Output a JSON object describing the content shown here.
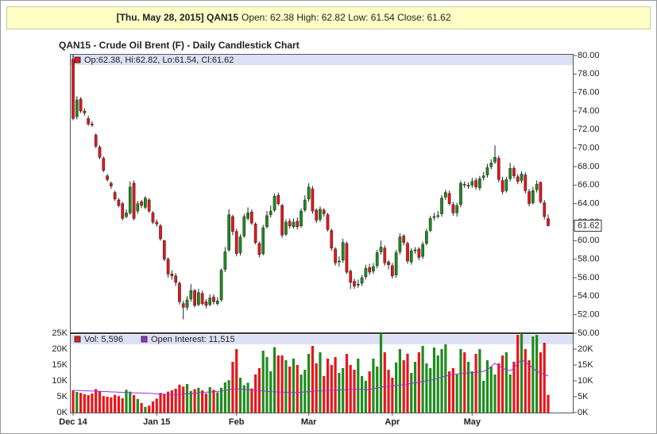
{
  "chart_data": {
    "type": "candlestick",
    "header_title": "[Thu. May 28, 2015] QAN15",
    "header_quote": "Open: 62.38 High: 62.82 Low: 61.54 Close: 61.62",
    "title": "QAN15 - Crude Oil Brent (F) - Daily Candlestick Chart",
    "price_legend": "Op:62.38, Hi:62.82, Lo:61.54, Cl:61.62",
    "up_color": "#1e8c1e",
    "down_color": "#e8151b",
    "categories": [
      "Dec 14",
      null,
      null,
      null,
      null,
      null,
      null,
      null,
      null,
      null,
      null,
      null,
      null,
      null,
      null,
      null,
      null,
      null,
      null,
      null,
      null,
      null,
      "Jan 15",
      null,
      null,
      null,
      null,
      null,
      null,
      null,
      null,
      null,
      null,
      null,
      null,
      null,
      null,
      null,
      null,
      null,
      null,
      null,
      null,
      "Feb",
      null,
      null,
      null,
      null,
      null,
      null,
      null,
      null,
      null,
      null,
      null,
      null,
      null,
      null,
      null,
      null,
      null,
      null,
      "Mar",
      null,
      null,
      null,
      null,
      null,
      null,
      null,
      null,
      null,
      null,
      null,
      null,
      null,
      null,
      null,
      null,
      null,
      null,
      null,
      null,
      null,
      "Apr",
      null,
      null,
      null,
      null,
      null,
      null,
      null,
      null,
      null,
      null,
      null,
      null,
      null,
      null,
      null,
      null,
      null,
      null,
      null,
      null,
      "May",
      null,
      null,
      null,
      null,
      null,
      null,
      null,
      null,
      null,
      null,
      null,
      null,
      null,
      null,
      null,
      null,
      null,
      null,
      null,
      null
    ],
    "open": [
      79.6,
      73.4,
      75.3,
      74.0,
      73.2,
      72.6,
      71.4,
      70.1,
      68.9,
      67.0,
      66.2,
      65.2,
      64.4,
      64.0,
      62.6,
      63.0,
      66.2,
      63.2,
      64.2,
      63.6,
      64.4,
      63.0,
      62.0,
      61.6,
      60.0,
      58.0,
      56.4,
      56.2,
      55.4,
      53.2,
      52.8,
      53.7,
      54.6,
      53.1,
      54.3,
      53.4,
      53.1,
      53.9,
      53.2,
      53.6,
      56.9,
      59.0,
      62.6,
      61.0,
      58.7,
      60.5,
      62.4,
      63.1,
      61.8,
      59.7,
      58.6,
      61.5,
      62.8,
      63.3,
      64.9,
      63.8,
      60.7,
      62.1,
      61.5,
      62.1,
      61.6,
      63.3,
      64.5,
      65.6,
      63.3,
      62.3,
      63.3,
      62.8,
      61.1,
      59.1,
      57.7,
      57.9,
      59.7,
      56.7,
      55.6,
      55.2,
      55.4,
      56.1,
      57.1,
      56.7,
      57.3,
      58.8,
      59.2,
      57.7,
      57.3,
      56.3,
      58.8,
      60.5,
      59.7,
      57.7,
      58.9,
      59.1,
      58.3,
      59.7,
      61.1,
      62.5,
      62.7,
      62.9,
      64.7,
      65.1,
      63.9,
      63.0,
      63.9,
      66.1,
      65.9,
      66.0,
      66.5,
      65.7,
      66.8,
      67.1,
      68.0,
      68.5,
      68.9,
      66.5,
      65.4,
      66.7,
      67.8,
      66.9,
      66.5,
      67.1,
      65.3,
      64.1,
      65.5,
      66.3,
      64.1,
      62.38
    ],
    "high": [
      80.1,
      75.6,
      75.5,
      74.3,
      73.5,
      72.9,
      71.6,
      70.3,
      69.1,
      67.2,
      66.4,
      65.4,
      64.6,
      64.2,
      63.4,
      66.4,
      66.5,
      64.3,
      64.4,
      64.8,
      64.6,
      63.2,
      62.3,
      61.8,
      60.1,
      58.2,
      56.8,
      56.5,
      55.6,
      53.5,
      54.0,
      55.3,
      54.8,
      54.8,
      54.6,
      53.7,
      54.2,
      54.2,
      53.9,
      57.0,
      59.3,
      63.4,
      62.8,
      61.3,
      60.7,
      62.9,
      63.6,
      63.4,
      62.0,
      59.9,
      61.7,
      63.2,
      63.8,
      65.1,
      65.2,
      64.0,
      62.3,
      62.4,
      62.4,
      62.5,
      63.5,
      64.9,
      66.2,
      65.9,
      63.5,
      63.7,
      63.5,
      63.0,
      61.3,
      59.3,
      58.3,
      60.2,
      59.9,
      56.9,
      55.9,
      55.8,
      56.3,
      57.4,
      57.5,
      57.6,
      59.0,
      60.0,
      59.5,
      57.9,
      57.6,
      59.0,
      60.8,
      60.7,
      59.9,
      59.2,
      59.3,
      59.3,
      59.9,
      61.3,
      62.7,
      63.0,
      63.2,
      64.9,
      65.5,
      65.4,
      64.2,
      64.1,
      66.5,
      66.4,
      66.3,
      66.8,
      66.8,
      67.0,
      67.4,
      68.3,
      68.8,
      70.3,
      69.2,
      66.9,
      66.9,
      68.4,
      68.1,
      67.2,
      67.5,
      67.4,
      65.6,
      65.8,
      66.5,
      66.4,
      64.4,
      62.82
    ],
    "low": [
      73.0,
      73.1,
      73.8,
      73.5,
      72.4,
      72.3,
      70.0,
      68.8,
      67.4,
      66.4,
      65.6,
      64.3,
      63.6,
      62.2,
      62.4,
      62.8,
      62.2,
      62.9,
      63.5,
      63.4,
      63.0,
      61.8,
      61.5,
      60.0,
      57.8,
      56.0,
      55.8,
      55.1,
      53.1,
      51.5,
      52.5,
      53.4,
      52.8,
      52.9,
      53.0,
      52.7,
      52.9,
      53.1,
      53.0,
      53.4,
      56.6,
      58.8,
      60.6,
      58.3,
      58.4,
      60.3,
      62.2,
      61.7,
      59.6,
      58.2,
      58.4,
      61.3,
      62.5,
      63.1,
      63.8,
      60.3,
      60.5,
      61.3,
      61.3,
      61.2,
      61.4,
      63.1,
      64.2,
      62.9,
      61.9,
      62.0,
      62.6,
      61.0,
      58.9,
      57.3,
      57.2,
      57.6,
      56.4,
      54.8,
      54.8,
      54.9,
      55.1,
      55.8,
      56.3,
      56.4,
      57.0,
      58.5,
      57.3,
      56.9,
      55.9,
      56.0,
      58.5,
      59.5,
      57.5,
      57.4,
      58.6,
      57.9,
      58.0,
      59.5,
      60.9,
      62.2,
      62.4,
      62.6,
      64.4,
      63.8,
      62.7,
      62.6,
      63.6,
      65.7,
      65.6,
      65.7,
      65.5,
      65.4,
      66.5,
      66.8,
      67.7,
      68.3,
      66.3,
      65.0,
      65.2,
      66.4,
      66.7,
      66.1,
      66.2,
      65.1,
      63.7,
      63.9,
      65.2,
      64.0,
      62.3,
      61.54
    ],
    "close": [
      73.2,
      75.2,
      74.0,
      73.8,
      72.6,
      72.5,
      70.2,
      69.0,
      67.6,
      66.6,
      65.9,
      64.5,
      63.8,
      62.4,
      63.0,
      65.8,
      62.4,
      64.0,
      63.8,
      64.6,
      63.2,
      62.0,
      61.8,
      60.2,
      58.0,
      56.4,
      56.2,
      55.5,
      53.4,
      52.8,
      53.6,
      54.6,
      53.0,
      54.4,
      53.2,
      53.0,
      53.8,
      53.4,
      53.5,
      56.8,
      58.8,
      62.8,
      61.0,
      58.6,
      60.4,
      62.6,
      63.0,
      61.9,
      59.8,
      58.5,
      61.4,
      62.7,
      63.2,
      64.8,
      64.0,
      60.6,
      62.0,
      61.6,
      62.0,
      61.5,
      63.2,
      64.4,
      65.8,
      63.2,
      62.2,
      63.4,
      62.9,
      61.2,
      59.2,
      57.6,
      57.8,
      59.8,
      56.6,
      55.5,
      55.1,
      55.3,
      56.0,
      57.0,
      56.6,
      57.2,
      58.7,
      59.3,
      57.6,
      57.4,
      56.2,
      58.7,
      60.4,
      59.8,
      57.8,
      58.9,
      59.0,
      58.2,
      59.6,
      61.0,
      62.4,
      62.6,
      62.7,
      64.6,
      65.2,
      64.0,
      63.0,
      63.8,
      66.2,
      66.0,
      66.0,
      66.4,
      65.8,
      66.7,
      67.0,
      67.9,
      68.4,
      69.0,
      66.6,
      65.3,
      66.6,
      67.8,
      67.0,
      66.4,
      67.2,
      65.4,
      64.0,
      65.4,
      66.1,
      64.2,
      62.6,
      61.62
    ],
    "close_label": "61.62",
    "ylim": [
      50,
      80
    ],
    "yticks": [
      {
        "value": 50,
        "label": "50.00"
      },
      {
        "value": 52,
        "label": "52.00"
      },
      {
        "value": 54,
        "label": "54.00"
      },
      {
        "value": 56,
        "label": "56.00"
      },
      {
        "value": 58,
        "label": "58.00"
      },
      {
        "value": 60,
        "label": "60.00"
      },
      {
        "value": 62,
        "label": "62.00"
      },
      {
        "value": 64,
        "label": "64.00"
      },
      {
        "value": 66,
        "label": "66.00"
      },
      {
        "value": 68,
        "label": "68.00"
      },
      {
        "value": 70,
        "label": "70.00"
      },
      {
        "value": 72,
        "label": "72.00"
      },
      {
        "value": 74,
        "label": "74.00"
      },
      {
        "value": 76,
        "label": "76.00"
      },
      {
        "value": 78,
        "label": "78.00"
      },
      {
        "value": 80,
        "label": "80.00"
      }
    ],
    "volume": {
      "legend": "Vol: 5,596",
      "values": [
        7000,
        6500,
        6200,
        5800,
        5500,
        6000,
        7400,
        6800,
        5200,
        5000,
        4800,
        5600,
        5200,
        4500,
        7200,
        6600,
        5500,
        4300,
        3000,
        1800,
        2200,
        3500,
        4400,
        6200,
        5800,
        6600,
        7000,
        7500,
        8800,
        8200,
        9000,
        6800,
        7400,
        7800,
        7000,
        6000,
        8000,
        7200,
        6400,
        7800,
        9500,
        10200,
        16000,
        20000,
        11000,
        8600,
        9400,
        7600,
        12000,
        14000,
        19500,
        17500,
        13000,
        20600,
        18000,
        18000,
        16500,
        14500,
        17000,
        15000,
        12000,
        13500,
        18500,
        21000,
        15500,
        19000,
        11500,
        17000,
        15000,
        17500,
        12500,
        14000,
        18500,
        15000,
        13500,
        17000,
        11500,
        10000,
        13000,
        17000,
        14500,
        25000,
        19000,
        13500,
        11000,
        15800,
        20000,
        16500,
        18500,
        12500,
        16000,
        19000,
        21000,
        15500,
        14000,
        20500,
        18000,
        20000,
        21500,
        13000,
        14000,
        12000,
        20000,
        19000,
        16000,
        13000,
        18500,
        20000,
        10000,
        16500,
        14500,
        12000,
        15500,
        18000,
        19000,
        12000,
        16000,
        24500,
        25000,
        20000,
        16500,
        24000,
        24500,
        19000,
        22000,
        5596
      ]
    },
    "open_interest": {
      "legend": "Open Interest: 11,515",
      "color": "#9b30d9",
      "values": [
        7000,
        7000,
        6900,
        6900,
        6800,
        6800,
        6700,
        6700,
        6600,
        6600,
        6500,
        6500,
        6400,
        6400,
        6300,
        6300,
        6200,
        6200,
        6200,
        6100,
        6100,
        6000,
        5900,
        5800,
        5800,
        5700,
        5600,
        5600,
        5700,
        5800,
        5900,
        6000,
        6100,
        6200,
        6300,
        6400,
        6500,
        6600,
        6700,
        6800,
        7000,
        7200,
        7400,
        7500,
        7400,
        7300,
        7200,
        7100,
        7000,
        6900,
        6800,
        6700,
        6600,
        6500,
        6500,
        6400,
        6400,
        6300,
        6300,
        6300,
        6400,
        6500,
        6600,
        6700,
        6800,
        6800,
        6900,
        7000,
        7000,
        7100,
        7100,
        7200,
        7200,
        7300,
        7300,
        7400,
        7300,
        7200,
        7300,
        7500,
        7800,
        8000,
        8200,
        8300,
        8400,
        8500,
        8600,
        8800,
        9000,
        9200,
        9400,
        9600,
        9800,
        10000,
        10200,
        10500,
        10800,
        11200,
        11500,
        11800,
        12000,
        12200,
        12300,
        12400,
        12500,
        12600,
        12700,
        12800,
        13000,
        13500,
        14500,
        15500,
        14800,
        14000,
        13500,
        13200,
        14000,
        15500,
        16500,
        16000,
        15000,
        14000,
        13000,
        12500,
        12000,
        11515
      ]
    },
    "y2lim": [
      0,
      25000
    ],
    "y2ticks": [
      {
        "value": 0,
        "label": "0K"
      },
      {
        "value": 5000,
        "label": "5K"
      },
      {
        "value": 10000,
        "label": "10K"
      },
      {
        "value": 15000,
        "label": "15K"
      },
      {
        "value": 20000,
        "label": "20K"
      },
      {
        "value": 25000,
        "label": "25K"
      }
    ]
  }
}
